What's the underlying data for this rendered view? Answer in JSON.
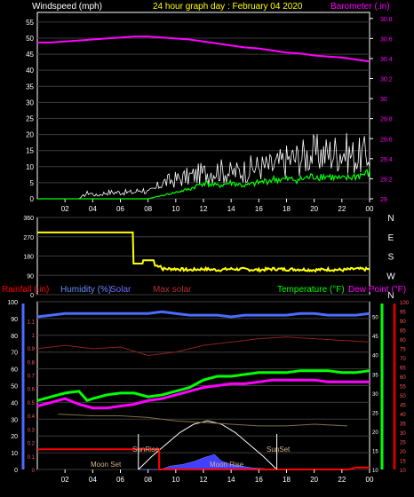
{
  "header": {
    "left_label": "Windspeed (mph)",
    "title": "24 hour graph day : February 04 2020",
    "right_label": "Barometer (.in)"
  },
  "panel3_header": {
    "rainfall": "Rainfall (.in)",
    "humidity": "Humidity (%)",
    "solar": "Solar",
    "max_solar": "Max solar",
    "temperature": "Temperature (°F)",
    "dew_point": "Dew Point (°F)"
  },
  "x_ticks": [
    "02",
    "04",
    "06",
    "08",
    "10",
    "12",
    "14",
    "16",
    "18",
    "20",
    "22",
    "00"
  ],
  "compass": [
    "N",
    "W",
    "S",
    "E",
    "N"
  ],
  "annotations": {
    "moon_set": "Moon Set",
    "sun_rise": "SunRise",
    "moon_rise": "Moon Rise",
    "sun_set": "SunSet"
  },
  "colors": {
    "wind_speed": "#ffffff",
    "wind_gust": "#00ff00",
    "barometer": "#ff00ff",
    "direction": "#ffff00",
    "humidity": "#4a6cff",
    "temperature": "#00ff00",
    "dew_point": "#ff00ff",
    "rain": "#ff0000",
    "solar": "#4040ff",
    "max_solar": "#8b2222",
    "sun_arc": "#ffffff"
  },
  "chart_data": [
    {
      "type": "line",
      "title": "24 hour graph day : February 04 2020",
      "x_label": "",
      "ylabel_left": "Windspeed (mph)",
      "ylabel_right": "Barometer (.in)",
      "y_ticks_left": [
        "0",
        "5",
        "10",
        "15",
        "20",
        "25",
        "30",
        "35",
        "40",
        "45",
        "50",
        "55"
      ],
      "y_ticks_right": [
        "29",
        "29.2",
        "29.4",
        "29.6",
        "29.8",
        "30",
        "30.2",
        "30.4",
        "30.6",
        "30.8"
      ],
      "ylim_left": [
        0,
        58
      ],
      "ylim_right": [
        29,
        30.86
      ],
      "x_range": [
        0,
        24
      ],
      "series": [
        {
          "name": "Barometer (.in)",
          "axis": "right",
          "x": [
            0,
            1,
            2,
            3,
            4,
            5,
            6,
            7,
            8,
            9,
            10,
            11,
            12,
            13,
            14,
            15,
            16,
            17,
            18,
            19,
            20,
            21,
            22,
            23,
            24
          ],
          "values": [
            30.56,
            30.56,
            30.57,
            30.58,
            30.59,
            30.6,
            30.61,
            30.62,
            30.62,
            30.61,
            30.6,
            30.59,
            30.57,
            30.55,
            30.53,
            30.51,
            30.5,
            30.48,
            30.46,
            30.45,
            30.43,
            30.42,
            30.41,
            30.39,
            30.37
          ]
        },
        {
          "axis": "left",
          "x": [
            0,
            2,
            3,
            3.7,
            4.3,
            5,
            6,
            7,
            7.5,
            8,
            8.5,
            9,
            10,
            11,
            12,
            13,
            14,
            15,
            16,
            17,
            18,
            19,
            20,
            21,
            22,
            23,
            24
          ],
          "values": [
            0,
            0,
            0,
            2,
            1,
            2,
            2,
            2,
            3,
            2,
            3,
            5,
            6,
            7,
            8,
            9,
            8,
            9,
            10,
            10,
            12,
            13,
            14,
            14,
            15,
            13,
            14
          ]
        },
        {
          "axis": "left",
          "x": [
            0,
            8,
            9,
            10,
            11,
            12,
            13,
            14,
            15,
            16,
            17,
            18,
            19,
            20,
            21,
            22,
            23,
            24
          ],
          "values": [
            0,
            0,
            1,
            2,
            3,
            5,
            4,
            5,
            4,
            5,
            6,
            6,
            6,
            7,
            7,
            6,
            7,
            8
          ]
        }
      ]
    },
    {
      "type": "line",
      "ylabel_left": "",
      "y_ticks_left": [
        "0",
        "90",
        "180",
        "270",
        "360"
      ],
      "ylim_left": [
        0,
        360
      ],
      "x_range": [
        0,
        24
      ],
      "series": [
        {
          "axis": "left",
          "x": [
            0,
            6.9,
            6.95,
            7.6,
            7.65,
            8.4,
            8.5,
            8.9,
            9,
            10,
            11,
            12,
            13,
            14,
            15,
            16,
            17,
            18,
            19,
            20,
            21,
            22,
            23,
            24
          ],
          "values": [
            290,
            290,
            145,
            145,
            160,
            160,
            135,
            135,
            120,
            120,
            115,
            120,
            115,
            120,
            118,
            115,
            120,
            118,
            118,
            115,
            118,
            115,
            120,
            118
          ]
        }
      ]
    },
    {
      "type": "line",
      "y_ticks_left": [
        "0",
        "10",
        "20",
        "30",
        "40",
        "50",
        "60",
        "70",
        "80",
        "90",
        "100"
      ],
      "y_ticks_right": [
        "10",
        "15",
        "20",
        "25",
        "30",
        "35",
        "40",
        "45",
        "50",
        "55",
        "60",
        "65",
        "70",
        "75",
        "80",
        "85",
        "90",
        "95",
        "100"
      ],
      "y_ticks_inner_left": [
        "0",
        "0.1",
        "0.2",
        "0.3",
        "0.4",
        "0.5",
        "0.6",
        "0.7",
        "0.8",
        "0.9",
        "1",
        "1.1"
      ],
      "y_ticks_inner_right": [
        "10",
        "15",
        "20",
        "25",
        "30",
        "35",
        "40",
        "45",
        "50"
      ],
      "ylim_left": [
        0,
        100
      ],
      "ylim_right": [
        10,
        100
      ],
      "x_range": [
        0,
        24
      ],
      "series": [
        {
          "name": "Humidity (%)",
          "axis": "left",
          "x": [
            0,
            1,
            2,
            3,
            4,
            5,
            6,
            7,
            8,
            9,
            10,
            11,
            12,
            13,
            14,
            15,
            16,
            17,
            18,
            19,
            20,
            21,
            22,
            23,
            24
          ],
          "values": [
            91,
            92,
            93,
            93,
            93,
            93,
            93,
            93,
            93,
            94,
            93,
            92,
            92,
            92,
            91,
            92,
            92,
            92,
            92,
            93,
            93,
            92,
            92,
            92,
            93
          ]
        },
        {
          "name": "Temperature (°F)",
          "axis": "right",
          "x": [
            0,
            1,
            2,
            3,
            3.6,
            4,
            5,
            6,
            7,
            8,
            9,
            10,
            11,
            12,
            13,
            14,
            15,
            16,
            17,
            18,
            19,
            20,
            21,
            22,
            23,
            24
          ],
          "values": [
            47,
            49,
            51,
            52,
            47,
            48,
            50,
            51,
            51,
            49,
            50,
            52,
            54,
            58,
            60,
            60,
            61,
            62,
            62,
            62,
            63,
            63,
            63,
            62,
            62,
            63
          ]
        },
        {
          "name": "Dew Point (°F)",
          "axis": "right",
          "x": [
            0,
            1,
            2,
            3,
            4,
            5,
            6,
            7,
            8,
            9,
            10,
            11,
            12,
            13,
            14,
            15,
            16,
            17,
            18,
            19,
            20,
            21,
            22,
            23,
            24
          ],
          "values": [
            44,
            46,
            48,
            45,
            43,
            43,
            44,
            45,
            47,
            48,
            50,
            52,
            54,
            55,
            56,
            56,
            57,
            58,
            58,
            58,
            58,
            57,
            57,
            57,
            57
          ]
        },
        {
          "name": "Rainfall (.in)",
          "axis": "inner_left",
          "x": [
            0,
            8.8,
            8.8,
            22.5,
            23,
            24
          ],
          "values": [
            0.15,
            0.15,
            0,
            0,
            0.015,
            0.015
          ]
        },
        {
          "name": "Solar",
          "axis": "left",
          "x": [
            7.3,
            8.9,
            9.6,
            10.5,
            11.4,
            12,
            12.4,
            12.8,
            13.3,
            14,
            15.5,
            17.3
          ],
          "values": [
            0,
            0,
            2,
            3,
            5,
            7,
            8,
            9,
            5,
            3,
            1,
            0
          ]
        },
        {
          "name": "Max solar",
          "axis": "left",
          "x": [
            7.3,
            8.3,
            9.3,
            10.3,
            11.3,
            12.3,
            13.3,
            14.3,
            15.3,
            16.3,
            17.3
          ],
          "values": [
            0,
            8,
            15,
            22,
            27,
            29,
            27,
            22,
            15,
            8,
            0
          ]
        }
      ]
    }
  ]
}
